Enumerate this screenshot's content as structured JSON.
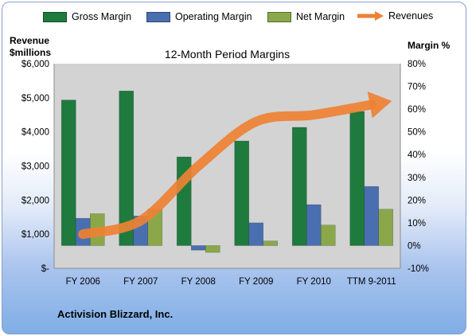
{
  "company": "Activision Blizzard, Inc.",
  "left_axis_title": [
    "Revenue",
    "$millions"
  ],
  "right_axis_title": "Margin %",
  "chart_data": {
    "type": "bar",
    "title": "12-Month Period Margins",
    "categories": [
      "FY 2006",
      "FY 2007",
      "FY 2008",
      "FY 2009",
      "FY 2010",
      "TTM 9-2011"
    ],
    "series": [
      {
        "name": "Gross Margin",
        "axis": "right",
        "color": "#1f7a3e",
        "values": [
          64,
          68,
          39,
          46,
          52,
          59
        ]
      },
      {
        "name": "Operating Margin",
        "axis": "right",
        "color": "#4a6fb0",
        "values": [
          12,
          13,
          -2,
          10,
          18,
          26
        ]
      },
      {
        "name": "Net Margin",
        "axis": "right",
        "color": "#8aa84a",
        "values": [
          14,
          16,
          -3,
          2,
          9,
          16
        ]
      },
      {
        "name": "Revenues",
        "axis": "left",
        "type": "line",
        "color": "#ee8133",
        "values": [
          1000,
          1400,
          3000,
          4300,
          4500,
          4800
        ]
      }
    ],
    "left_axis": {
      "range": [
        0,
        6000
      ],
      "ticks": [
        "$-",
        "$1,000",
        "$2,000",
        "$3,000",
        "$4,000",
        "$5,000",
        "$6,000"
      ]
    },
    "right_axis": {
      "range": [
        -10,
        80
      ],
      "ticks": [
        "-10%",
        "0%",
        "10%",
        "20%",
        "30%",
        "40%",
        "50%",
        "60%",
        "70%",
        "80%"
      ]
    },
    "legend_position": "top",
    "grid": false
  }
}
